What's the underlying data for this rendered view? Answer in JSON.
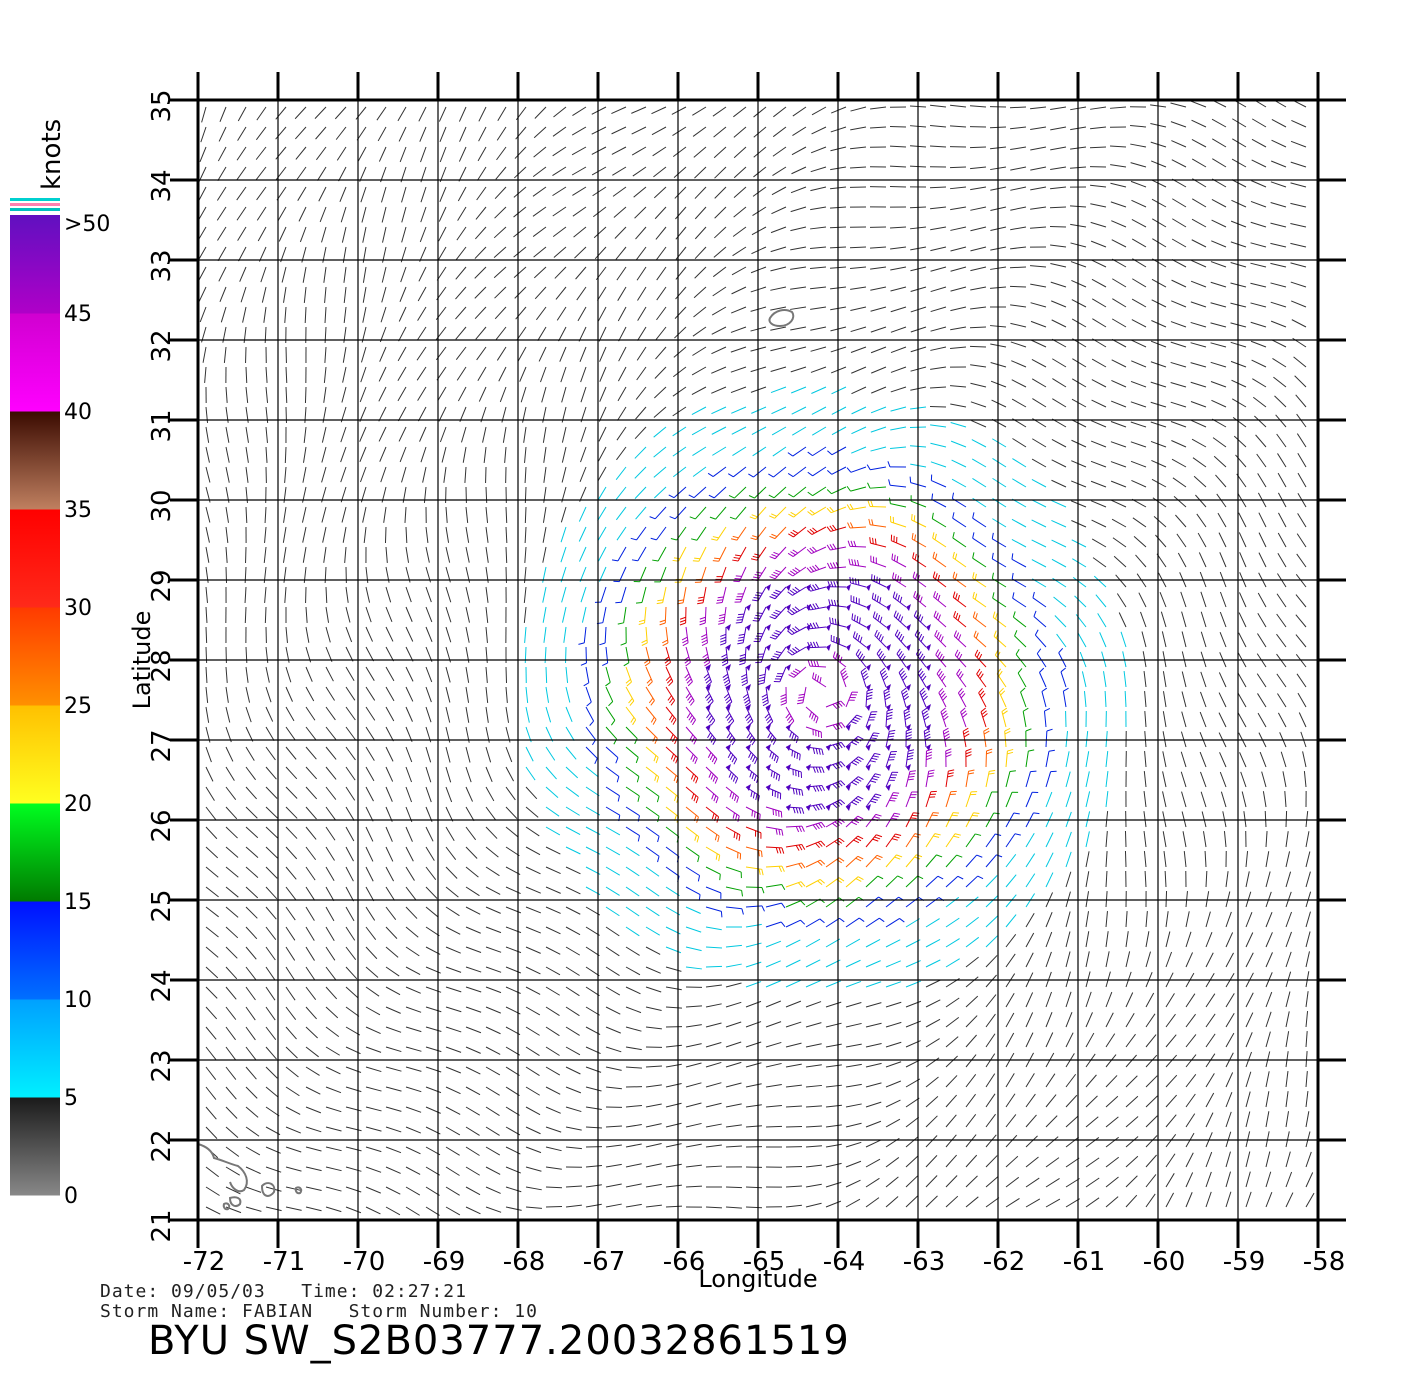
{
  "map": {
    "xlabel": "Longitude",
    "ylabel": "Latitude",
    "lon_ticks": [
      "-72",
      "-71",
      "-70",
      "-69",
      "-68",
      "-67",
      "-66",
      "-65",
      "-64",
      "-63",
      "-62",
      "-61",
      "-60",
      "-59",
      "-58"
    ],
    "lat_ticks": [
      "21",
      "22",
      "23",
      "24",
      "25",
      "26",
      "27",
      "28",
      "29",
      "30",
      "31",
      "32",
      "33",
      "34",
      "35"
    ],
    "lon_range": [
      -72,
      -58
    ],
    "lat_range": [
      21,
      35
    ],
    "storm_center": {
      "lon": -64.2,
      "lat": 27.6
    }
  },
  "colorbar": {
    "unit_label": "knots",
    "tick_labels": [
      "0",
      "5",
      "10",
      "15",
      "20",
      "25",
      "30",
      "35",
      "40",
      "45",
      ">50"
    ],
    "bins": [
      {
        "from": 0,
        "to": 5,
        "colors": [
          "#888888",
          "#1a1a1a"
        ]
      },
      {
        "from": 5,
        "to": 10,
        "colors": [
          "#00f0ff",
          "#00a0ff"
        ]
      },
      {
        "from": 10,
        "to": 15,
        "colors": [
          "#0070ff",
          "#0010ff"
        ]
      },
      {
        "from": 15,
        "to": 20,
        "colors": [
          "#007a00",
          "#00ff20"
        ]
      },
      {
        "from": 20,
        "to": 25,
        "colors": [
          "#ffff20",
          "#ffc000"
        ]
      },
      {
        "from": 25,
        "to": 30,
        "colors": [
          "#ff9000",
          "#ff3a00"
        ]
      },
      {
        "from": 30,
        "to": 35,
        "colors": [
          "#ff2a1a",
          "#ff0000"
        ]
      },
      {
        "from": 35,
        "to": 40,
        "colors": [
          "#c08060",
          "#3a0a00"
        ]
      },
      {
        "from": 40,
        "to": 45,
        "colors": [
          "#ff00ff",
          "#d000d0"
        ]
      },
      {
        "from": 45,
        "to": 50,
        "colors": [
          "#b000c8",
          "#6010c0"
        ]
      }
    ]
  },
  "wind_colors": {
    "calm": "#333333",
    "light": "#00c8e0",
    "moderate": "#0020e0",
    "fresh": "#00a000",
    "strong": "#ffd000",
    "gale": "#ff6000",
    "storm": "#e00000",
    "severe": "#a000c0",
    "extreme": "#5000c0"
  },
  "info": {
    "date_line": "Date: 09/05/03   Time: 02:27:21",
    "storm_line": "Storm Name: FABIAN   Storm Number: 10"
  },
  "product_title": "BYU SW_S2B03777.20032861519"
}
